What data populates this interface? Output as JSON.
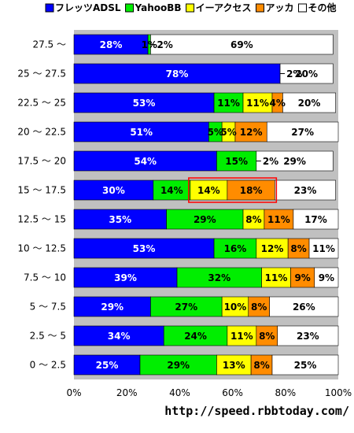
{
  "chart_data": {
    "type": "bar",
    "orientation": "horizontal",
    "stacked": "percent",
    "categories": [
      "27.5 ～",
      "25 ～ 27.5",
      "22.5 ～ 25",
      "20 ～ 22.5",
      "17.5 ～ 20",
      "15 ～ 17.5",
      "12.5 ～ 15",
      "10 ～ 12.5",
      "7.5 ～ 10",
      "5 ～ 7.5",
      "2.5 ～ 5",
      "0 ～ 2.5"
    ],
    "series": [
      {
        "name": "フレッツADSL",
        "color": "#0000ff",
        "values": [
          28,
          78,
          53,
          51,
          54,
          30,
          35,
          53,
          39,
          29,
          34,
          25
        ]
      },
      {
        "name": "YahooBB",
        "color": "#00ee00",
        "values": [
          1,
          0,
          11,
          5,
          15,
          14,
          29,
          16,
          32,
          27,
          24,
          29
        ]
      },
      {
        "name": "イーアクセス",
        "color": "#ffff00",
        "values": [
          0,
          0,
          11,
          5,
          0,
          14,
          8,
          12,
          11,
          10,
          11,
          13
        ]
      },
      {
        "name": "アッカ",
        "color": "#ff8c00",
        "values": [
          0,
          0,
          4,
          12,
          0,
          18,
          11,
          8,
          9,
          8,
          8,
          8
        ]
      },
      {
        "name": "その他",
        "color": "#ffffff",
        "values": [
          69,
          20,
          20,
          27,
          29,
          23,
          17,
          11,
          9,
          26,
          23,
          25
        ]
      }
    ],
    "small_labels": [
      {
        "row": 0,
        "text": "2%"
      },
      {
        "row": 1,
        "text": "2%"
      },
      {
        "row": 4,
        "text": "2%"
      }
    ],
    "bar_labels": [
      [
        "28%",
        "1%",
        "",
        "",
        "69%"
      ],
      [
        "78%",
        "",
        "",
        "",
        "20%"
      ],
      [
        "53%",
        "11%",
        "11%",
        "4%",
        "20%"
      ],
      [
        "51%",
        "5%",
        "5%",
        "12%",
        "27%"
      ],
      [
        "54%",
        "15%",
        "",
        "",
        "29%"
      ],
      [
        "30%",
        "14%",
        "14%",
        "18%",
        "23%"
      ],
      [
        "35%",
        "29%",
        "8%",
        "11%",
        "17%"
      ],
      [
        "53%",
        "16%",
        "12%",
        "8%",
        "11%"
      ],
      [
        "39%",
        "32%",
        "11%",
        "9%",
        "9%"
      ],
      [
        "29%",
        "27%",
        "10%",
        "8%",
        "26%"
      ],
      [
        "34%",
        "24%",
        "11%",
        "8%",
        "23%"
      ],
      [
        "25%",
        "29%",
        "13%",
        "8%",
        "25%"
      ]
    ],
    "highlight": {
      "row": 5,
      "series_from": 2,
      "series_to": 3,
      "color": "#ff0000"
    },
    "xlim": [
      0,
      100
    ],
    "x_ticks": [
      "0%",
      "20%",
      "40%",
      "60%",
      "80%",
      "100%"
    ],
    "legend_position": "top",
    "background": "#c0c0c0"
  },
  "footer": {
    "url": "http://speed.rbbtoday.com/"
  }
}
